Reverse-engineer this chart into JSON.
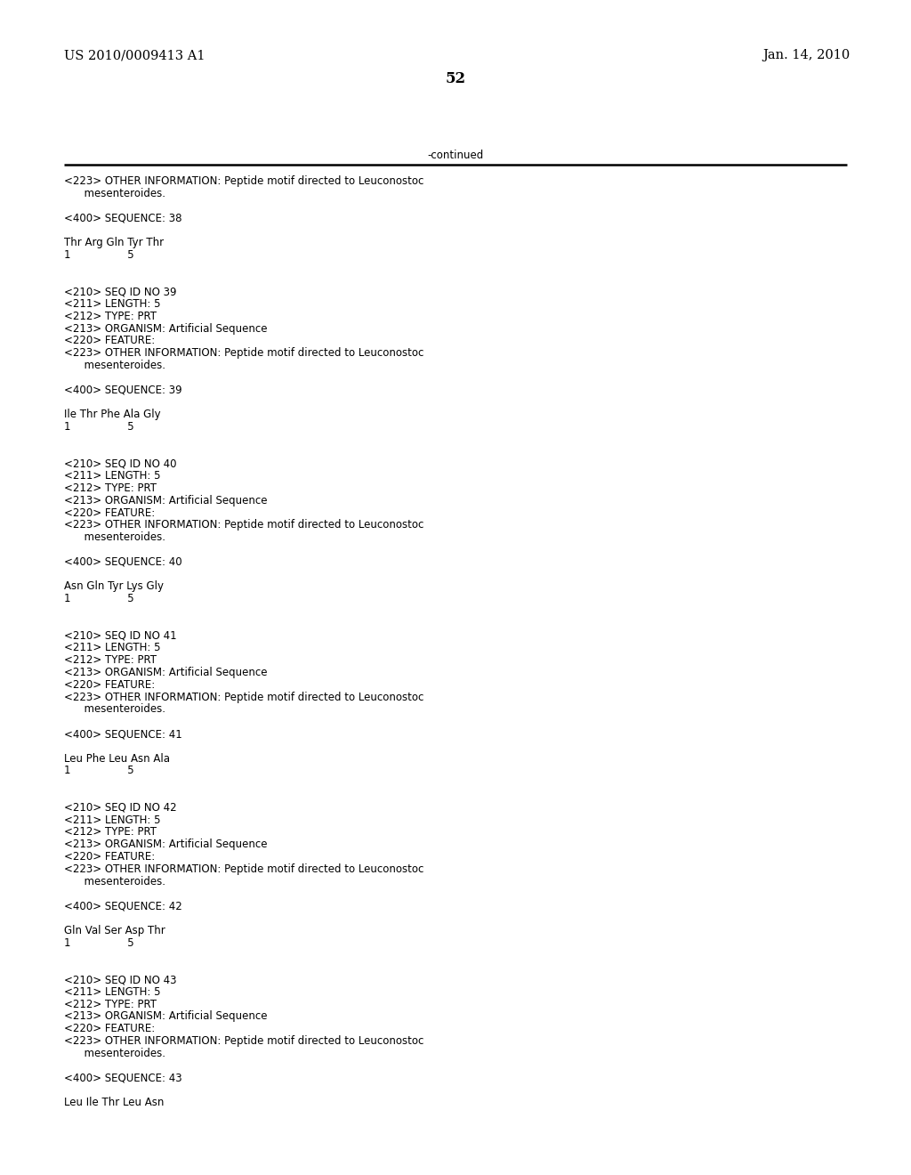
{
  "header_left": "US 2010/0009413 A1",
  "header_right": "Jan. 14, 2010",
  "page_number": "52",
  "continued_label": "-continued",
  "background_color": "#ffffff",
  "text_color": "#000000",
  "font_size_header": 10.5,
  "font_size_body": 8.5,
  "font_size_page": 12,
  "lines": [
    "<223> OTHER INFORMATION: Peptide motif directed to Leuconostoc",
    "      mesenteroides.",
    "",
    "<400> SEQUENCE: 38",
    "",
    "Thr Arg Gln Tyr Thr",
    "1                 5",
    "",
    "",
    "<210> SEQ ID NO 39",
    "<211> LENGTH: 5",
    "<212> TYPE: PRT",
    "<213> ORGANISM: Artificial Sequence",
    "<220> FEATURE:",
    "<223> OTHER INFORMATION: Peptide motif directed to Leuconostoc",
    "      mesenteroides.",
    "",
    "<400> SEQUENCE: 39",
    "",
    "Ile Thr Phe Ala Gly",
    "1                 5",
    "",
    "",
    "<210> SEQ ID NO 40",
    "<211> LENGTH: 5",
    "<212> TYPE: PRT",
    "<213> ORGANISM: Artificial Sequence",
    "<220> FEATURE:",
    "<223> OTHER INFORMATION: Peptide motif directed to Leuconostoc",
    "      mesenteroides.",
    "",
    "<400> SEQUENCE: 40",
    "",
    "Asn Gln Tyr Lys Gly",
    "1                 5",
    "",
    "",
    "<210> SEQ ID NO 41",
    "<211> LENGTH: 5",
    "<212> TYPE: PRT",
    "<213> ORGANISM: Artificial Sequence",
    "<220> FEATURE:",
    "<223> OTHER INFORMATION: Peptide motif directed to Leuconostoc",
    "      mesenteroides.",
    "",
    "<400> SEQUENCE: 41",
    "",
    "Leu Phe Leu Asn Ala",
    "1                 5",
    "",
    "",
    "<210> SEQ ID NO 42",
    "<211> LENGTH: 5",
    "<212> TYPE: PRT",
    "<213> ORGANISM: Artificial Sequence",
    "<220> FEATURE:",
    "<223> OTHER INFORMATION: Peptide motif directed to Leuconostoc",
    "      mesenteroides.",
    "",
    "<400> SEQUENCE: 42",
    "",
    "Gln Val Ser Asp Thr",
    "1                 5",
    "",
    "",
    "<210> SEQ ID NO 43",
    "<211> LENGTH: 5",
    "<212> TYPE: PRT",
    "<213> ORGANISM: Artificial Sequence",
    "<220> FEATURE:",
    "<223> OTHER INFORMATION: Peptide motif directed to Leuconostoc",
    "      mesenteroides.",
    "",
    "<400> SEQUENCE: 43",
    "",
    "Leu Ile Thr Leu Asn"
  ]
}
